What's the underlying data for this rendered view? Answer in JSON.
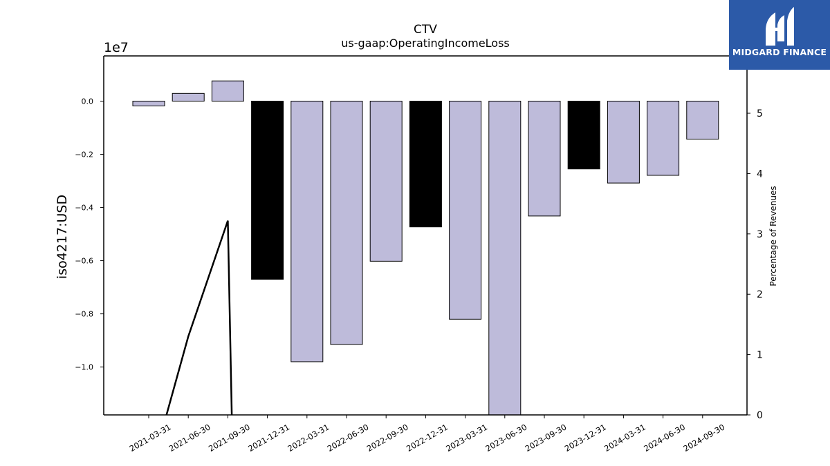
{
  "chart_data": {
    "type": "bar",
    "title": "CTV",
    "subtitle": "us-gaap:OperatingIncomeLoss",
    "ylabel": "iso4217:USD",
    "y2label": "Percentage of Revenues",
    "offset_label": "1e7",
    "ylim": [
      -11800000,
      1700000
    ],
    "y2lim": [
      0,
      5.95
    ],
    "yticks": [
      0.0,
      -0.2,
      -0.4,
      -0.6,
      -0.8,
      -1.0
    ],
    "yticklabels": [
      "0.0",
      "−0.2",
      "−0.4",
      "−0.6",
      "−0.8",
      "−1.0"
    ],
    "y2ticks": [
      0,
      1,
      2,
      3,
      4,
      5
    ],
    "categories": [
      "2021-03-31",
      "2021-06-30",
      "2021-09-30",
      "2021-12-31",
      "2022-03-31",
      "2022-06-30",
      "2022-09-30",
      "2022-12-31",
      "2023-03-31",
      "2023-06-30",
      "2023-09-30",
      "2023-12-31",
      "2024-03-31",
      "2024-06-30",
      "2024-09-30"
    ],
    "values": [
      -180000,
      290000,
      760000,
      -6700000,
      -9800000,
      -9150000,
      -6020000,
      -4730000,
      -8200000,
      -12500000,
      -4320000,
      -2550000,
      -3080000,
      -2790000,
      -1430000
    ],
    "bar_colors": [
      "#bebbda",
      "#bebbda",
      "#bebbda",
      "#000000",
      "#bebbda",
      "#bebbda",
      "#bebbda",
      "#000000",
      "#bebbda",
      "#bebbda",
      "#bebbda",
      "#000000",
      "#bebbda",
      "#bebbda",
      "#bebbda"
    ],
    "line": {
      "axis": "right",
      "color": "#000000",
      "points": [
        [
          0.45,
          0
        ],
        [
          1,
          1.3
        ],
        [
          2,
          3.22
        ],
        [
          2.1,
          0
        ]
      ]
    },
    "grid": false
  },
  "logo": {
    "text": "MIDGARD FINANCE",
    "color": "#2c5aa8"
  }
}
